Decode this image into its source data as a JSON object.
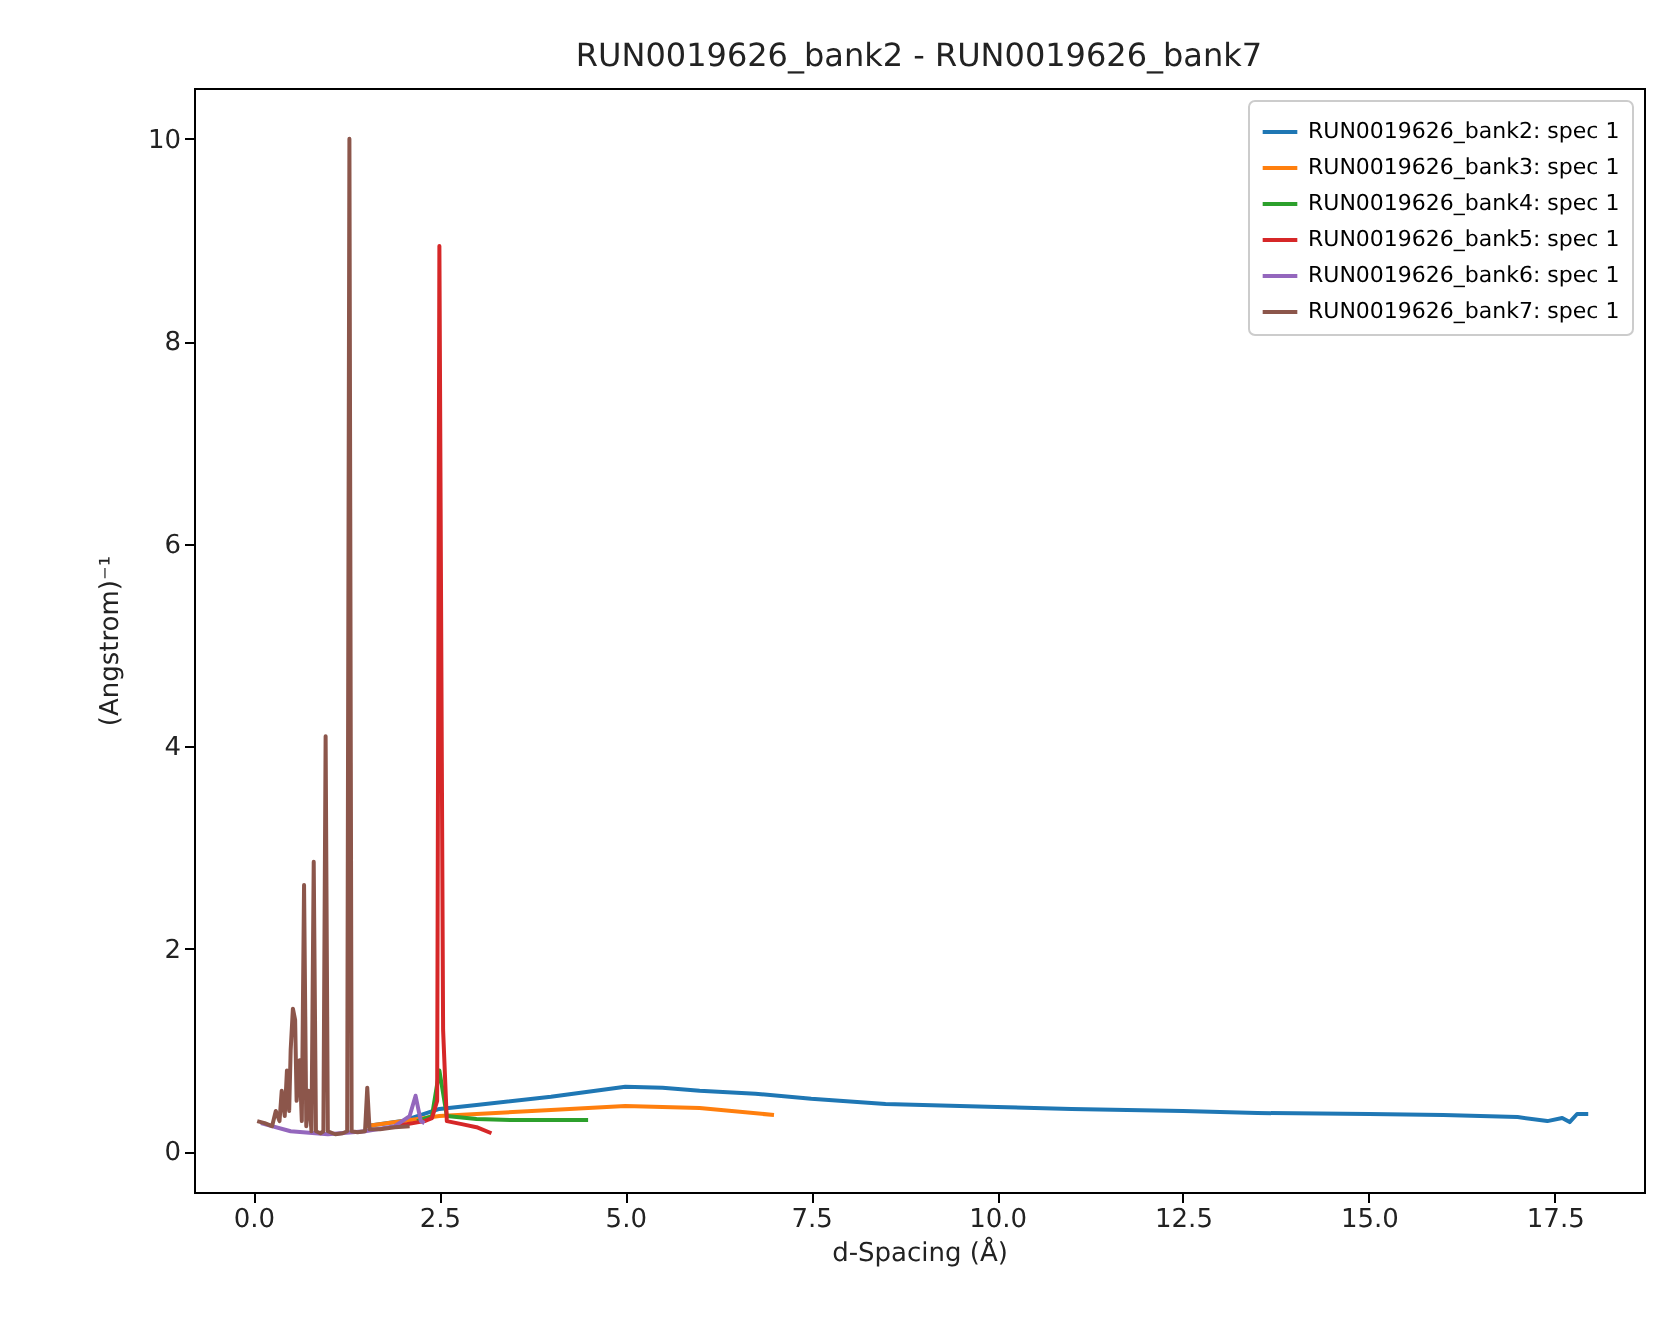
{
  "chart_data": {
    "type": "line",
    "title": "RUN0019626_bank2 - RUN0019626_bank7",
    "xlabel": "d-Spacing (Å)",
    "ylabel": "(Angstrom)⁻¹",
    "xlim": [
      -0.8,
      18.7
    ],
    "ylim": [
      -0.4,
      10.5
    ],
    "xticks": [
      {
        "value": 0,
        "label": "0.0"
      },
      2.5,
      {
        "value": 5,
        "label": "5.0"
      },
      7.5,
      {
        "value": 10,
        "label": "10.0"
      },
      12.5,
      {
        "value": 15,
        "label": "15.0"
      },
      17.5
    ],
    "yticks": [
      0,
      2,
      4,
      6,
      8,
      10
    ],
    "grid": false,
    "legend": "top right",
    "series": [
      {
        "name": "RUN0019626_bank2: spec 1",
        "color": "#1f77b4",
        "x": [
          1.5,
          2.0,
          2.5,
          3.0,
          4.0,
          5.0,
          5.5,
          6.0,
          6.75,
          7.5,
          8.5,
          10,
          11,
          12.5,
          13.5,
          15,
          16,
          17,
          17.4,
          17.6,
          17.7,
          17.8,
          17.95
        ],
        "values": [
          0.25,
          0.3,
          0.42,
          0.46,
          0.54,
          0.64,
          0.63,
          0.6,
          0.57,
          0.52,
          0.47,
          0.44,
          0.42,
          0.4,
          0.38,
          0.37,
          0.36,
          0.34,
          0.3,
          0.33,
          0.29,
          0.37,
          0.37
        ]
      },
      {
        "name": "RUN0019626_bank3: spec 1",
        "color": "#ff7f0e",
        "x": [
          1.5,
          2.5,
          3.0,
          4.0,
          5.0,
          6.0,
          7.0
        ],
        "values": [
          0.25,
          0.35,
          0.37,
          0.41,
          0.45,
          0.43,
          0.36
        ]
      },
      {
        "name": "RUN0019626_bank4: spec 1",
        "color": "#2ca02c",
        "x": [
          2.2,
          2.4,
          2.5,
          2.6,
          3.0,
          3.5,
          4.0,
          4.5
        ],
        "values": [
          0.3,
          0.35,
          0.8,
          0.35,
          0.32,
          0.31,
          0.31,
          0.31
        ]
      },
      {
        "name": "RUN0019626_bank5: spec 1",
        "color": "#d62728",
        "x": [
          1.9,
          2.3,
          2.4,
          2.47,
          2.5,
          2.55,
          2.6,
          2.8,
          3.0,
          3.2
        ],
        "values": [
          0.25,
          0.3,
          0.33,
          0.5,
          8.94,
          1.2,
          0.3,
          0.27,
          0.24,
          0.18
        ]
      },
      {
        "name": "RUN0019626_bank6: spec 1",
        "color": "#9467bd",
        "x": [
          0.1,
          0.5,
          1.0,
          1.5,
          1.9,
          2.1,
          2.18,
          2.25,
          2.3
        ],
        "values": [
          0.28,
          0.2,
          0.17,
          0.2,
          0.25,
          0.35,
          0.55,
          0.3,
          0.28
        ]
      },
      {
        "name": "RUN0019626_bank7: spec 1",
        "color": "#8c564b",
        "x": [
          0.05,
          0.15,
          0.25,
          0.3,
          0.35,
          0.38,
          0.42,
          0.45,
          0.48,
          0.5,
          0.53,
          0.56,
          0.58,
          0.62,
          0.65,
          0.68,
          0.71,
          0.74,
          0.78,
          0.81,
          0.84,
          0.9,
          0.94,
          0.97,
          1.0,
          1.1,
          1.2,
          1.26,
          1.29,
          1.32,
          1.4,
          1.5,
          1.53,
          1.56,
          1.7,
          1.9,
          2.1
        ],
        "values": [
          0.3,
          0.28,
          0.25,
          0.4,
          0.3,
          0.6,
          0.35,
          0.8,
          0.4,
          1.0,
          1.41,
          1.3,
          0.5,
          0.9,
          0.3,
          2.63,
          0.25,
          0.6,
          0.2,
          2.86,
          0.2,
          0.18,
          0.2,
          4.1,
          0.2,
          0.17,
          0.18,
          0.2,
          10.0,
          0.2,
          0.19,
          0.2,
          0.63,
          0.22,
          0.22,
          0.24,
          0.25
        ]
      }
    ]
  }
}
